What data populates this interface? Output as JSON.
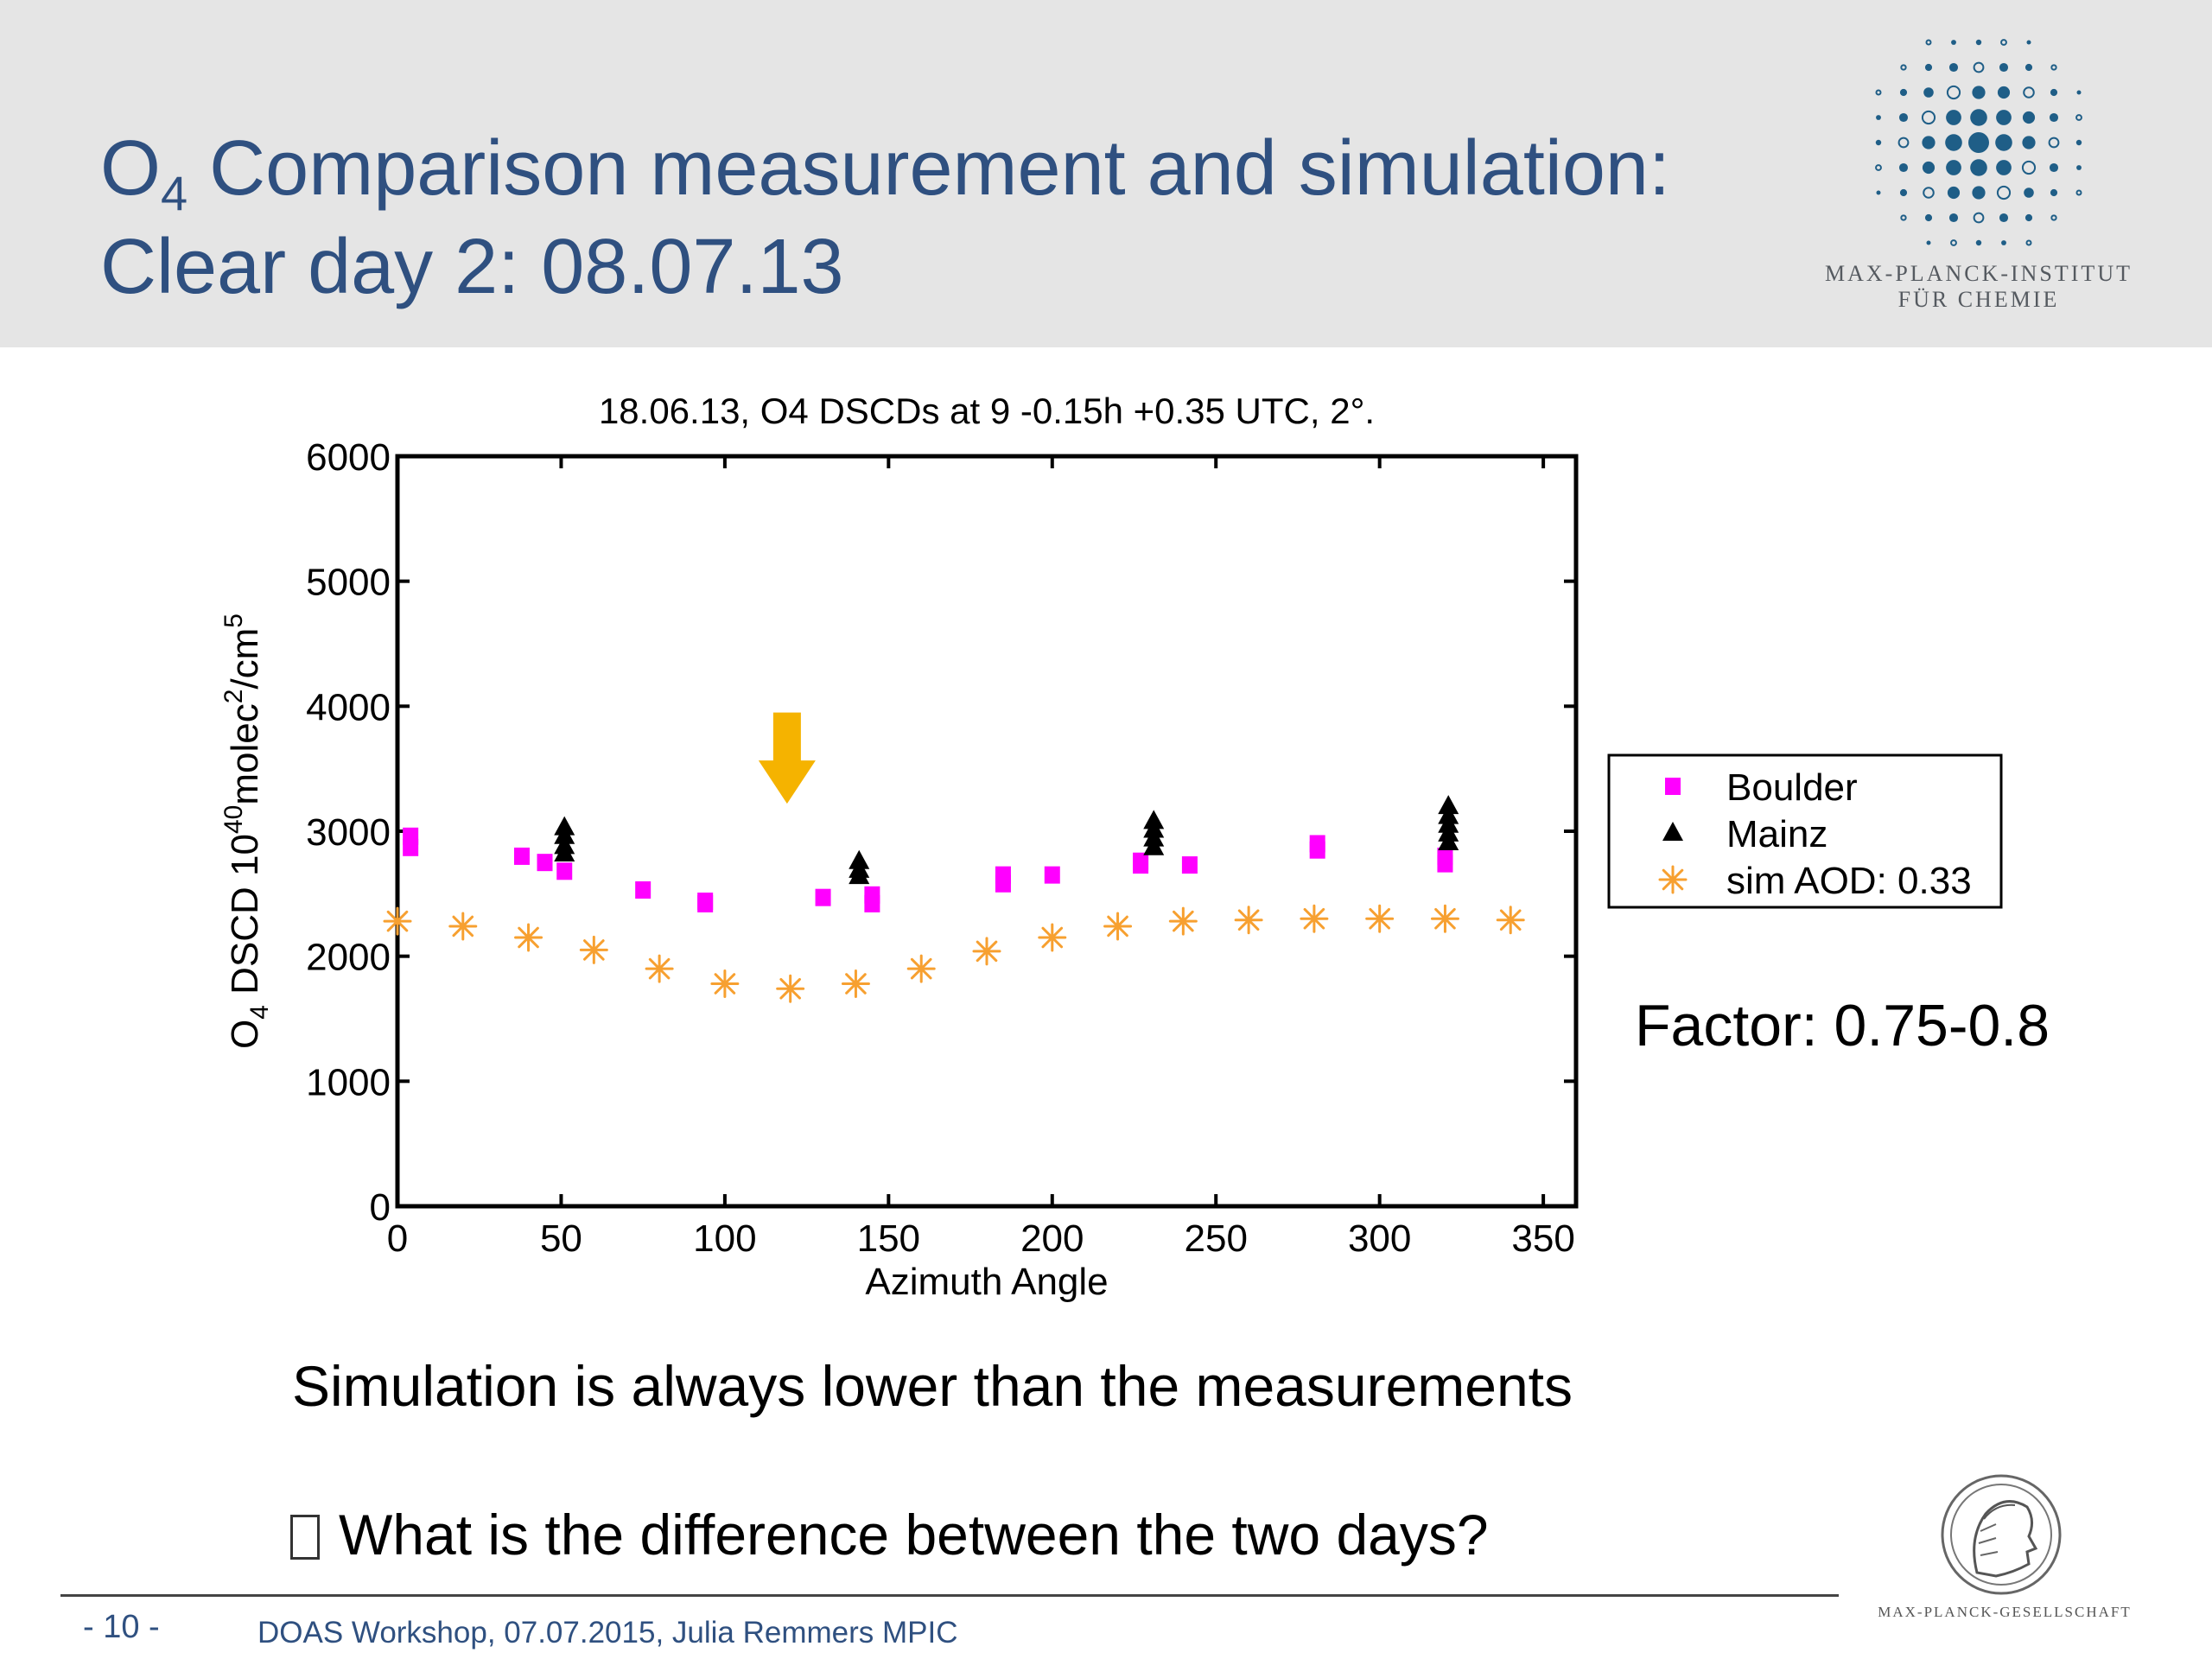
{
  "slide": {
    "title_main": "O",
    "title_sub": "4",
    "title_rest": " Comparison measurement and simulation:",
    "title_line2": "Clear day 2: 08.07.13",
    "institute_line1": "MAX-PLANCK-INSTITUT",
    "institute_line2": "FÜR CHEMIE",
    "factor": "Factor: 0.75-0.8",
    "note1": "Simulation is always lower than the measurements",
    "note2": "What is the difference between the two days?",
    "page_number": "- 10 -",
    "footer": "DOAS Workshop, 07.07.2015, Julia Remmers MPIC",
    "society": "MAX-PLANCK-GESELLSCHAFT"
  },
  "colors": {
    "title": "#2f5080",
    "boulder": "#ff00ff",
    "mainz": "#000000",
    "sim": "#f7a030",
    "arrow": "#f5b300"
  },
  "chart_data": {
    "type": "scatter",
    "title": "18.06.13, O4 DSCDs at 9 -0.15h +0.35 UTC, 2°.",
    "xlabel": "Azimuth Angle",
    "ylabel_parts": [
      "O",
      "4",
      " DSCD 10",
      "40",
      "molec",
      "2",
      "/cm",
      "5"
    ],
    "xlim": [
      0,
      360
    ],
    "ylim": [
      0,
      6000
    ],
    "xticks": [
      0,
      50,
      100,
      150,
      200,
      250,
      300,
      350
    ],
    "yticks": [
      0,
      1000,
      2000,
      3000,
      4000,
      5000,
      6000
    ],
    "legend_position": "right, outside plot",
    "arrow_annotation": {
      "x": 119,
      "y_top": 3950,
      "y_bottom": 3220
    },
    "series": [
      {
        "name": "Boulder",
        "marker": "square",
        "points": [
          [
            4,
            2960
          ],
          [
            4,
            2870
          ],
          [
            38,
            2800
          ],
          [
            45,
            2750
          ],
          [
            51,
            2680
          ],
          [
            75,
            2530
          ],
          [
            94,
            2440
          ],
          [
            94,
            2420
          ],
          [
            130,
            2470
          ],
          [
            145,
            2490
          ],
          [
            145,
            2420
          ],
          [
            185,
            2650
          ],
          [
            185,
            2580
          ],
          [
            200,
            2650
          ],
          [
            227,
            2760
          ],
          [
            227,
            2730
          ],
          [
            242,
            2730
          ],
          [
            281,
            2900
          ],
          [
            281,
            2850
          ],
          [
            320,
            2800
          ],
          [
            320,
            2740
          ]
        ]
      },
      {
        "name": "Mainz",
        "marker": "triangle",
        "points": [
          [
            51,
            3030
          ],
          [
            51,
            2960
          ],
          [
            51,
            2880
          ],
          [
            51,
            2820
          ],
          [
            141,
            2760
          ],
          [
            141,
            2690
          ],
          [
            141,
            2640
          ],
          [
            231,
            3080
          ],
          [
            231,
            3010
          ],
          [
            231,
            2940
          ],
          [
            231,
            2870
          ],
          [
            321,
            3200
          ],
          [
            321,
            3120
          ],
          [
            321,
            3050
          ],
          [
            321,
            2980
          ],
          [
            321,
            2910
          ]
        ]
      },
      {
        "name": "sim AOD: 0.33",
        "marker": "asterisk",
        "points": [
          [
            0,
            2280
          ],
          [
            20,
            2240
          ],
          [
            40,
            2150
          ],
          [
            60,
            2050
          ],
          [
            80,
            1900
          ],
          [
            100,
            1780
          ],
          [
            120,
            1740
          ],
          [
            140,
            1780
          ],
          [
            160,
            1900
          ],
          [
            180,
            2040
          ],
          [
            200,
            2150
          ],
          [
            220,
            2240
          ],
          [
            240,
            2280
          ],
          [
            260,
            2290
          ],
          [
            280,
            2300
          ],
          [
            300,
            2300
          ],
          [
            320,
            2300
          ],
          [
            340,
            2290
          ]
        ]
      }
    ]
  }
}
